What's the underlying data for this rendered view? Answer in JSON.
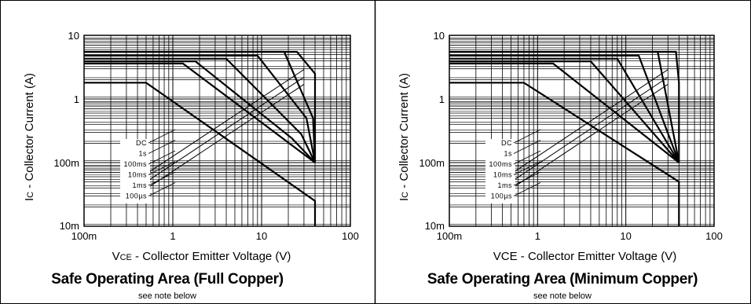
{
  "chart_data": [
    {
      "type": "line",
      "title": "Safe Operating Area (Full Copper)",
      "subtitle": "see note below",
      "xlabel_prefix": "V",
      "xlabel_sub": "CE",
      "xlabel_rest": " - Collector Emitter Voltage (V)",
      "ylabel_prefix": "I",
      "ylabel_sub": "C",
      "ylabel_rest": " - Collector Current (A)",
      "x_scale": "log",
      "y_scale": "log",
      "xlim": [
        0.1,
        100
      ],
      "ylim": [
        0.01,
        10
      ],
      "grid": true,
      "x_ticks": [
        {
          "v": 0.1,
          "label": "100m"
        },
        {
          "v": 1,
          "label": "1"
        },
        {
          "v": 10,
          "label": "10"
        },
        {
          "v": 100,
          "label": "100"
        }
      ],
      "y_ticks": [
        {
          "v": 10,
          "label": "10"
        },
        {
          "v": 1,
          "label": "1"
        },
        {
          "v": 0.1,
          "label": "100m"
        },
        {
          "v": 0.01,
          "label": "10m"
        }
      ],
      "thermal_lines": [
        {
          "x": [
            0.45,
            30
          ],
          "y": [
            0.035,
            1.7
          ]
        },
        {
          "x": [
            0.45,
            30
          ],
          "y": [
            0.045,
            2.2
          ]
        },
        {
          "x": [
            0.45,
            30
          ],
          "y": [
            0.06,
            2.9
          ]
        }
      ],
      "series": [
        {
          "name": "DC",
          "x": [
            0.1,
            0.5,
            40,
            40
          ],
          "y": [
            1.8,
            1.8,
            0.025,
            0.01
          ]
        },
        {
          "name": "1s",
          "x": [
            0.1,
            1.3,
            40
          ],
          "y": [
            3.6,
            3.6,
            0.1
          ]
        },
        {
          "name": "100ms",
          "x": [
            0.1,
            1.8,
            22,
            40
          ],
          "y": [
            3.9,
            3.9,
            0.24,
            0.1
          ]
        },
        {
          "name": "10ms",
          "x": [
            0.1,
            4,
            28,
            40
          ],
          "y": [
            4.3,
            4.3,
            0.28,
            0.1
          ]
        },
        {
          "name": "1ms",
          "x": [
            0.1,
            9,
            32,
            40
          ],
          "y": [
            4.8,
            4.8,
            0.5,
            0.1
          ]
        },
        {
          "name": "100µs",
          "x": [
            0.1,
            18,
            38,
            40
          ],
          "y": [
            5.5,
            5.5,
            0.5,
            0.1
          ]
        },
        {
          "name": "",
          "x": [
            0.1,
            25,
            40,
            40
          ],
          "y": [
            5.5,
            5.5,
            2.5,
            0.1
          ]
        }
      ],
      "legend_labels": [
        "DC",
        "1s",
        "100ms",
        "10ms",
        "1ms",
        "100µs"
      ]
    },
    {
      "type": "line",
      "title": "Safe Operating Area (Minimum Copper)",
      "subtitle": "see note below",
      "xlabel_prefix": "VCE",
      "xlabel_sub": "",
      "xlabel_rest": " - Collector Emitter Voltage (V)",
      "ylabel_prefix": "I",
      "ylabel_sub": "C",
      "ylabel_rest": " - Collector Current (A)",
      "x_scale": "log",
      "y_scale": "log",
      "xlim": [
        0.1,
        100
      ],
      "ylim": [
        0.01,
        10
      ],
      "grid": true,
      "x_ticks": [
        {
          "v": 0.1,
          "label": "100m"
        },
        {
          "v": 1,
          "label": "1"
        },
        {
          "v": 10,
          "label": "10"
        },
        {
          "v": 100,
          "label": "100"
        }
      ],
      "y_ticks": [
        {
          "v": 10,
          "label": "10"
        },
        {
          "v": 1,
          "label": "1"
        },
        {
          "v": 0.1,
          "label": "100m"
        },
        {
          "v": 0.01,
          "label": "10m"
        }
      ],
      "thermal_lines": [
        {
          "x": [
            0.45,
            30
          ],
          "y": [
            0.035,
            1.7
          ]
        },
        {
          "x": [
            0.45,
            30
          ],
          "y": [
            0.045,
            2.2
          ]
        },
        {
          "x": [
            0.45,
            30
          ],
          "y": [
            0.06,
            2.9
          ]
        }
      ],
      "series": [
        {
          "name": "DC",
          "x": [
            0.1,
            0.7,
            40,
            40
          ],
          "y": [
            1.8,
            1.8,
            0.05,
            0.01
          ]
        },
        {
          "name": "1s",
          "x": [
            0.1,
            1.5,
            40
          ],
          "y": [
            3.6,
            3.6,
            0.1
          ]
        },
        {
          "name": "100ms",
          "x": [
            0.1,
            4,
            40
          ],
          "y": [
            3.9,
            3.9,
            0.1
          ]
        },
        {
          "name": "10ms",
          "x": [
            0.1,
            8,
            40
          ],
          "y": [
            4.3,
            4.3,
            0.1
          ]
        },
        {
          "name": "1ms",
          "x": [
            0.1,
            14,
            40
          ],
          "y": [
            4.8,
            4.8,
            0.1
          ]
        },
        {
          "name": "100µs",
          "x": [
            0.1,
            23,
            40
          ],
          "y": [
            5.5,
            5.5,
            0.1
          ]
        },
        {
          "name": "",
          "x": [
            0.1,
            37,
            40,
            40
          ],
          "y": [
            5.5,
            5.5,
            1.8,
            0.1
          ]
        }
      ],
      "legend_labels": [
        "DC",
        "1s",
        "100ms",
        "10ms",
        "1ms",
        "100µs"
      ]
    }
  ]
}
